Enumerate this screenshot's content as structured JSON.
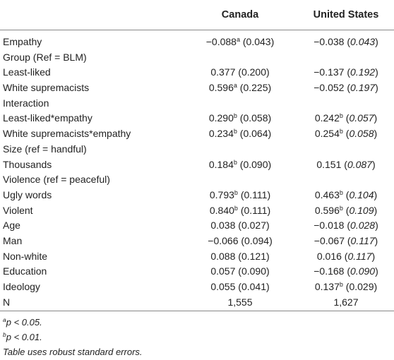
{
  "header": {
    "col_label": "",
    "col_canada": "Canada",
    "col_us": "United States"
  },
  "rows": [
    {
      "label": "Empathy",
      "ca_val": "−0.088",
      "ca_sup": "a",
      "ca_se": " (0.043)",
      "us_val": "−0.038",
      "us_sup": "",
      "us_se_open": " (",
      "us_se": "0.043",
      "us_se_close": ")"
    },
    {
      "label": "Group (Ref = BLM)",
      "ca_val": "",
      "ca_sup": "",
      "ca_se": "",
      "us_val": "",
      "us_sup": "",
      "us_se_open": "",
      "us_se": "",
      "us_se_close": ""
    },
    {
      "label": "Least-liked",
      "ca_val": "0.377",
      "ca_sup": "",
      "ca_se": " (0.200)",
      "us_val": "−0.137",
      "us_sup": "",
      "us_se_open": " (",
      "us_se": "0.192",
      "us_se_close": ")"
    },
    {
      "label": "White supremacists",
      "ca_val": "0.596",
      "ca_sup": "a",
      "ca_se": " (0.225)",
      "us_val": "−0.052",
      "us_sup": "",
      "us_se_open": " (",
      "us_se": "0.197",
      "us_se_close": ")"
    },
    {
      "label": "Interaction",
      "ca_val": "",
      "ca_sup": "",
      "ca_se": "",
      "us_val": "",
      "us_sup": "",
      "us_se_open": "",
      "us_se": "",
      "us_se_close": ""
    },
    {
      "label": "Least-liked*empathy",
      "ca_val": "0.290",
      "ca_sup": "b",
      "ca_se": " (0.058)",
      "us_val": "0.242",
      "us_sup": "b",
      "us_se_open": " (",
      "us_se": "0.057",
      "us_se_close": ")"
    },
    {
      "label": "White supremacists*empathy",
      "ca_val": "0.234",
      "ca_sup": "b",
      "ca_se": " (0.064)",
      "us_val": "0.254",
      "us_sup": "b",
      "us_se_open": " (",
      "us_se": "0.058",
      "us_se_close": ")"
    },
    {
      "label": "Size (ref = handful)",
      "ca_val": "",
      "ca_sup": "",
      "ca_se": "",
      "us_val": "",
      "us_sup": "",
      "us_se_open": "",
      "us_se": "",
      "us_se_close": ""
    },
    {
      "label": "Thousands",
      "ca_val": "0.184",
      "ca_sup": "b",
      "ca_se": " (0.090)",
      "us_val": "0.151",
      "us_sup": "",
      "us_se_open": " (",
      "us_se": "0.087",
      "us_se_close": ")"
    },
    {
      "label": "Violence (ref = peaceful)",
      "ca_val": "",
      "ca_sup": "",
      "ca_se": "",
      "us_val": "",
      "us_sup": "",
      "us_se_open": "",
      "us_se": "",
      "us_se_close": ""
    },
    {
      "label": "Ugly words",
      "ca_val": "0.793",
      "ca_sup": "b",
      "ca_se": " (0.111)",
      "us_val": "0.463",
      "us_sup": "b",
      "us_se_open": " (",
      "us_se": "0.104",
      "us_se_close": ")"
    },
    {
      "label": "Violent",
      "ca_val": "0.840",
      "ca_sup": "b",
      "ca_se": " (0.111)",
      "us_val": "0.596",
      "us_sup": "b",
      "us_se_open": " (",
      "us_se": "0.109",
      "us_se_close": ")"
    },
    {
      "label": "Age",
      "ca_val": "0.038",
      "ca_sup": "",
      "ca_se": " (0.027)",
      "us_val": "−0.018",
      "us_sup": "",
      "us_se_open": " (",
      "us_se": "0.028",
      "us_se_close": ")"
    },
    {
      "label": "Man",
      "ca_val": "−0.066",
      "ca_sup": "",
      "ca_se": " (0.094)",
      "us_val": "−0.067",
      "us_sup": "",
      "us_se_open": " (",
      "us_se": "0.117",
      "us_se_close": ")"
    },
    {
      "label": "Non-white",
      "ca_val": "0.088",
      "ca_sup": "",
      "ca_se": " (0.121)",
      "us_val": "0.016",
      "us_sup": "",
      "us_se_open": " (",
      "us_se": "0.117",
      "us_se_close": ")"
    },
    {
      "label": "Education",
      "ca_val": "0.057",
      "ca_sup": "",
      "ca_se": " (0.090)",
      "us_val": "−0.168",
      "us_sup": "",
      "us_se_open": " (",
      "us_se": "0.090",
      "us_se_close": ")"
    },
    {
      "label": "Ideology",
      "ca_val": "0.055",
      "ca_sup": "",
      "ca_se": " (0.041)",
      "us_val": "0.137",
      "us_sup": "b",
      "us_se_open": " (",
      "us_se_plain": "0.029",
      "us_se": "",
      "us_se_close": ")"
    },
    {
      "label": "N",
      "ca_val": "1,555",
      "ca_sup": "",
      "ca_se": "",
      "us_val": "1,627",
      "us_sup": "",
      "us_se_open": "",
      "us_se": "",
      "us_se_close": ""
    }
  ],
  "notes": [
    {
      "sup": "a",
      "text": "p < 0.05."
    },
    {
      "sup": "b",
      "text": "p < 0.01."
    },
    {
      "sup": "",
      "text": "Table uses robust standard errors."
    }
  ]
}
